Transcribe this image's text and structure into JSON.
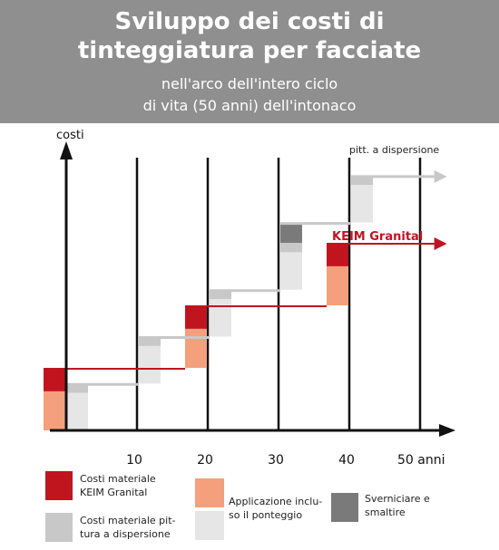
{
  "title_line1": "Sviluppo dei costi di",
  "title_line2": "tinteggiatura per facciate",
  "subtitle_line1": "nell'arco dell'intero ciclo",
  "subtitle_line2": "di vita (50 anni) dell'intonaco",
  "colors": {
    "header_bg": "#8f8f8f",
    "keim_material": "#c0151f",
    "dispersion_material": "#c8c8c8",
    "application": "#f4a07c",
    "application_dispersion": "#e6e6e6",
    "strip_dispose": "#7a7a7a",
    "keim_line": "#c0151f",
    "dispersion_line": "#c8c8c8"
  },
  "legend": [
    {
      "key": "keim_material",
      "label_line1": "Costi materiale",
      "label_line2": "KEIM Granital"
    },
    {
      "key": "dispersion_material",
      "label_line1": "Costi materiale pit-",
      "label_line2": "tura a dispersione"
    },
    {
      "key": "application",
      "label_line1": "Applicazione inclu-",
      "label_line2": "so il ponteggio"
    },
    {
      "key": "strip_dispose",
      "label_line1": "Sverniciare e",
      "label_line2": "smaltire"
    }
  ],
  "chart_data": {
    "type": "bar",
    "ylabel": "costi",
    "x_ticks": [
      "10",
      "20",
      "30",
      "40",
      "50 anni"
    ],
    "x_tick_values": [
      10,
      20,
      30,
      40,
      50
    ],
    "xlim": [
      0,
      50
    ],
    "series_labels": {
      "dispersion": "pitt. a dispersione",
      "keim": "KEIM Granital"
    },
    "keim_steps": [
      {
        "year": 0,
        "application": 1.25,
        "material": 0.75,
        "cumulative": 2.0
      },
      {
        "year": 20,
        "application": 1.25,
        "material": 0.75,
        "cumulative": 4.0
      },
      {
        "year": 40,
        "application": 1.25,
        "material": 0.75,
        "cumulative": 6.0
      }
    ],
    "dispersion_steps": [
      {
        "year": 0,
        "application": 1.2,
        "material": 0.3,
        "strip": 0,
        "cumulative": 1.5
      },
      {
        "year": 10,
        "application": 1.2,
        "material": 0.3,
        "strip": 0,
        "cumulative": 3.0
      },
      {
        "year": 20,
        "application": 1.2,
        "material": 0.3,
        "strip": 0,
        "cumulative": 4.5
      },
      {
        "year": 30,
        "application": 1.2,
        "material": 0.3,
        "strip": 0.65,
        "cumulative": 6.65
      },
      {
        "year": 40,
        "application": 1.2,
        "material": 0.3,
        "strip": 0,
        "cumulative": 8.15
      }
    ],
    "ylim": [
      0,
      9
    ]
  }
}
